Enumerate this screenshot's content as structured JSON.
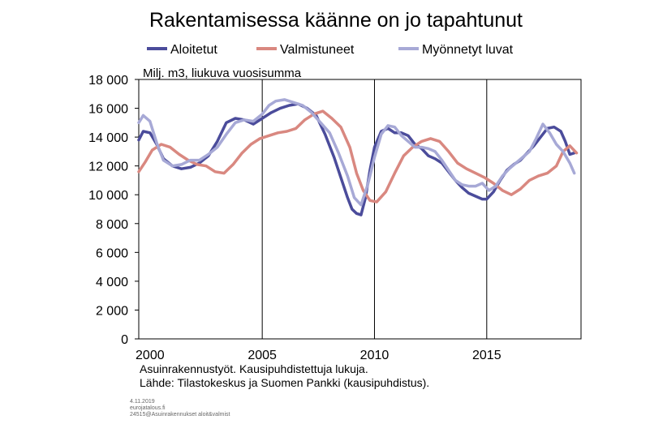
{
  "chart_data": {
    "type": "line",
    "title": "Rakentamisessa käänne on jo tapahtunut",
    "ylabel": "Milj. m3, liukuva vuosisumma",
    "ylim": [
      0,
      18000
    ],
    "yticks": [
      0,
      2000,
      4000,
      6000,
      8000,
      10000,
      12000,
      14000,
      16000,
      18000
    ],
    "ytick_labels": [
      "0",
      "2 000",
      "4 000",
      "6 000",
      "8 000",
      "10 000",
      "12 000",
      "14 000",
      "16 000",
      "18 000"
    ],
    "xlim": [
      1999.5,
      2019.2
    ],
    "xticks": [
      2000,
      2005,
      2010,
      2015
    ],
    "xtick_labels": [
      "2000",
      "2005",
      "2010",
      "2015"
    ],
    "vlines": [
      2005,
      2010,
      2015
    ],
    "legend_position": "top",
    "grid": false,
    "series": [
      {
        "name": "Aloitetut",
        "color": "#4b4c9b",
        "x": [
          1999.5,
          1999.7,
          2000.0,
          2000.3,
          2000.6,
          2001.0,
          2001.4,
          2001.8,
          2002.2,
          2002.6,
          2003.0,
          2003.4,
          2003.8,
          2004.2,
          2004.6,
          2005.0,
          2005.4,
          2005.8,
          2006.2,
          2006.6,
          2007.0,
          2007.4,
          2007.8,
          2008.2,
          2008.5,
          2008.8,
          2009.0,
          2009.2,
          2009.4,
          2009.6,
          2009.8,
          2010.0,
          2010.3,
          2010.6,
          2010.9,
          2011.2,
          2011.5,
          2011.8,
          2012.1,
          2012.4,
          2012.7,
          2013.0,
          2013.3,
          2013.6,
          2013.9,
          2014.2,
          2014.5,
          2014.8,
          2015.0,
          2015.3,
          2015.6,
          2015.9,
          2016.2,
          2016.5,
          2016.8,
          2017.1,
          2017.4,
          2017.7,
          2018.0,
          2018.3,
          2018.5,
          2018.7,
          2018.9
        ],
        "values": [
          13800,
          14400,
          14300,
          13500,
          12500,
          12000,
          11800,
          11900,
          12200,
          12700,
          13700,
          15000,
          15300,
          15200,
          14900,
          15300,
          15700,
          16000,
          16200,
          16300,
          16000,
          15500,
          14200,
          12600,
          11200,
          9800,
          9000,
          8700,
          8600,
          9800,
          11700,
          13300,
          14400,
          14600,
          14300,
          14300,
          14100,
          13500,
          13200,
          12700,
          12500,
          12200,
          11600,
          11000,
          10500,
          10100,
          9900,
          9700,
          9700,
          10200,
          11000,
          11700,
          12100,
          12400,
          12900,
          13400,
          14000,
          14600,
          14700,
          14400,
          13700,
          12800,
          12900
        ]
      },
      {
        "name": "Valmistuneet",
        "color": "#d98880",
        "x": [
          1999.5,
          1999.8,
          2000.1,
          2000.5,
          2000.9,
          2001.3,
          2001.7,
          2002.1,
          2002.5,
          2002.9,
          2003.3,
          2003.7,
          2004.1,
          2004.5,
          2004.9,
          2005.3,
          2005.7,
          2006.1,
          2006.5,
          2006.9,
          2007.3,
          2007.7,
          2008.1,
          2008.5,
          2008.9,
          2009.2,
          2009.5,
          2009.8,
          2010.1,
          2010.5,
          2010.9,
          2011.3,
          2011.7,
          2012.1,
          2012.5,
          2012.9,
          2013.3,
          2013.7,
          2014.1,
          2014.5,
          2014.9,
          2015.3,
          2015.7,
          2016.1,
          2016.5,
          2016.9,
          2017.3,
          2017.7,
          2018.1,
          2018.4,
          2018.7,
          2019.0
        ],
        "values": [
          11600,
          12300,
          13100,
          13500,
          13300,
          12800,
          12400,
          12100,
          12000,
          11600,
          11500,
          12100,
          12900,
          13500,
          13900,
          14100,
          14300,
          14400,
          14600,
          15200,
          15600,
          15800,
          15300,
          14700,
          13300,
          11500,
          10300,
          9600,
          9500,
          10200,
          11500,
          12700,
          13300,
          13700,
          13900,
          13700,
          13000,
          12200,
          11800,
          11500,
          11200,
          10800,
          10300,
          10000,
          10400,
          11000,
          11300,
          11500,
          12000,
          13000,
          13400,
          12900
        ]
      },
      {
        "name": "Myönnetyt luvat",
        "color": "#a7a9d6",
        "x": [
          1999.5,
          1999.7,
          2000.0,
          2000.3,
          2000.6,
          2001.0,
          2001.4,
          2001.8,
          2002.2,
          2002.6,
          2003.0,
          2003.4,
          2003.8,
          2004.2,
          2004.6,
          2005.0,
          2005.3,
          2005.6,
          2006.0,
          2006.4,
          2006.8,
          2007.2,
          2007.6,
          2008.0,
          2008.4,
          2008.8,
          2009.1,
          2009.4,
          2009.7,
          2010.0,
          2010.3,
          2010.6,
          2010.9,
          2011.2,
          2011.5,
          2011.8,
          2012.1,
          2012.4,
          2012.7,
          2013.0,
          2013.3,
          2013.6,
          2013.9,
          2014.2,
          2014.5,
          2014.8,
          2015.1,
          2015.4,
          2015.7,
          2016.0,
          2016.3,
          2016.6,
          2016.9,
          2017.2,
          2017.5,
          2017.8,
          2018.1,
          2018.4,
          2018.7,
          2018.9
        ],
        "values": [
          15000,
          15500,
          15100,
          13600,
          12400,
          12000,
          12100,
          12400,
          12400,
          12800,
          13300,
          14200,
          15000,
          15200,
          15100,
          15600,
          16200,
          16500,
          16600,
          16400,
          16200,
          15700,
          15000,
          14300,
          12900,
          11300,
          9800,
          9300,
          10700,
          12600,
          14200,
          14800,
          14700,
          14100,
          13700,
          13300,
          13300,
          13200,
          13000,
          12400,
          11700,
          11000,
          10700,
          10600,
          10600,
          10800,
          10300,
          10600,
          11300,
          11800,
          12200,
          12600,
          13000,
          13900,
          14900,
          14300,
          13500,
          13000,
          12200,
          11500
        ]
      }
    ]
  },
  "footnotes": [
    "Asuinrakennustyöt. Kausipuhdistettuja lukuja.",
    "Lähde: Tilastokeskus ja Suomen Pankki (kausipuhdistus)."
  ],
  "meta": {
    "date": "4.11.2019",
    "site": "eurojatalous.fi",
    "code": "24515@Asuinrakennukset aloit&valmist"
  }
}
